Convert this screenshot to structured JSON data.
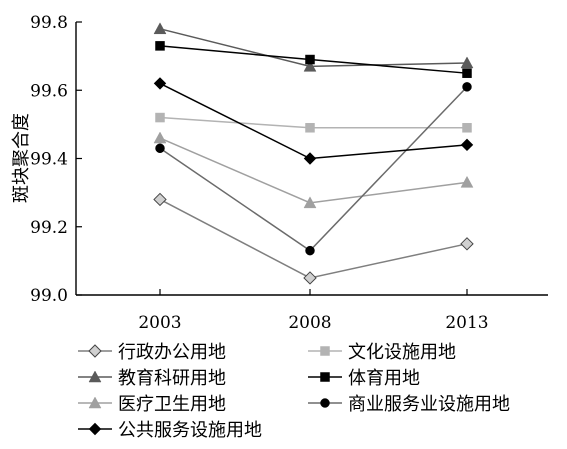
{
  "chart_data": {
    "type": "line",
    "ylabel": "斑块聚合度",
    "x": [
      "2003",
      "2008",
      "2013"
    ],
    "ylim": [
      99.0,
      99.8
    ],
    "yticks": [
      "99.0",
      "99.2",
      "99.4",
      "99.6",
      "99.8"
    ],
    "grid": false,
    "legend": "bottom",
    "series": [
      {
        "name": "行政办公用地",
        "values": [
          99.28,
          99.05,
          99.15
        ],
        "marker": "diamond-open",
        "color": "#7f7f7f"
      },
      {
        "name": "文化设施用地",
        "values": [
          99.52,
          99.49,
          99.49
        ],
        "marker": "square",
        "color": "#b3b3b3"
      },
      {
        "name": "教育科研用地",
        "values": [
          99.78,
          99.67,
          99.68
        ],
        "marker": "triangle",
        "color": "#5a5a5a"
      },
      {
        "name": "体育用地",
        "values": [
          99.73,
          99.69,
          99.65
        ],
        "marker": "square",
        "color": "#000000"
      },
      {
        "name": "医疗卫生用地",
        "values": [
          99.46,
          99.27,
          99.33
        ],
        "marker": "triangle",
        "color": "#a0a0a0"
      },
      {
        "name": "商业服务业设施用地",
        "values": [
          99.43,
          99.13,
          99.61
        ],
        "marker": "circle",
        "color": "#6b6b6b"
      },
      {
        "name": "公共服务设施用地",
        "values": [
          99.62,
          99.4,
          99.44
        ],
        "marker": "diamond",
        "color": "#000000"
      }
    ]
  }
}
